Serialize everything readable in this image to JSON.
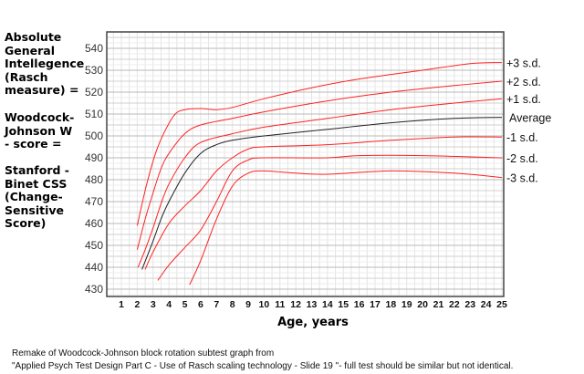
{
  "left_labels": [
    "Absolute General Intellegence (Rasch measure) =",
    "Woodcock-Johnson W - score =",
    "Stanford - Binet CSS (Change-Sensitive Score)"
  ],
  "caption": [
    "Remake of Woodcock-Johnson block rotation subtest graph from",
    "\"Applied Psych Test Design Part C - Use of Rasch scaling technology - Slide 19 \"- full test should be similar but not identical."
  ],
  "chart_data": {
    "type": "line",
    "title": "",
    "xlabel": "Age, years",
    "ylabel": "",
    "xlim": [
      0,
      25
    ],
    "ylim": [
      427,
      547
    ],
    "x_ticks": [
      1,
      2,
      3,
      4,
      5,
      6,
      7,
      8,
      9,
      10,
      11,
      12,
      13,
      14,
      15,
      16,
      17,
      18,
      19,
      20,
      21,
      22,
      23,
      24,
      25
    ],
    "y_ticks": [
      430,
      440,
      450,
      460,
      470,
      480,
      490,
      500,
      510,
      520,
      530,
      540
    ],
    "grid": true,
    "legend": "right, labels at line ends",
    "series": [
      {
        "name": "+3 s.d.",
        "color": "#ff2020",
        "x": [
          2,
          2.6,
          3.2,
          3.8,
          4.4,
          5,
          6,
          7,
          8,
          10,
          13,
          16,
          20,
          23,
          25
        ],
        "y": [
          459,
          478,
          493,
          503,
          510,
          512,
          512.5,
          512,
          513,
          517,
          522,
          526,
          530,
          533,
          533.5
        ]
      },
      {
        "name": "+2 s.d.",
        "color": "#ff2020",
        "x": [
          2,
          2.5,
          3,
          3.5,
          4,
          5,
          6,
          8,
          10,
          14,
          18,
          22,
          25
        ],
        "y": [
          448,
          462,
          474,
          485,
          492,
          501,
          505,
          508,
          511,
          516,
          520,
          523,
          525
        ]
      },
      {
        "name": "+1 s.d.",
        "color": "#ff2020",
        "x": [
          2.05,
          2.5,
          3,
          3.5,
          4,
          5,
          6,
          8,
          10,
          14,
          18,
          22,
          25
        ],
        "y": [
          440,
          448,
          458,
          469,
          478,
          490,
          497,
          501,
          504,
          508,
          512,
          515,
          517
        ]
      },
      {
        "name": "Average",
        "color": "#222222",
        "x": [
          2.3,
          3,
          3.5,
          4,
          5,
          6,
          7,
          8,
          10,
          14,
          18,
          22,
          25
        ],
        "y": [
          439,
          452,
          462,
          470,
          483,
          492,
          496,
          498,
          500,
          503,
          506,
          508,
          508.5
        ]
      },
      {
        "name": "-1 s.d.",
        "color": "#ff2020",
        "x": [
          2.5,
          3,
          4,
          5,
          6,
          7,
          8,
          9,
          10,
          14,
          18,
          22,
          25
        ],
        "y": [
          439,
          447,
          460,
          468,
          475,
          484,
          490,
          494,
          495,
          496,
          498,
          499.5,
          499.5
        ]
      },
      {
        "name": "-2 s.d.",
        "color": "#ff2020",
        "x": [
          3.3,
          4,
          5,
          6,
          7,
          8,
          9,
          10,
          14,
          16,
          20,
          25
        ],
        "y": [
          434,
          441,
          449,
          457,
          470,
          484,
          489,
          490,
          490,
          491,
          491,
          490
        ]
      },
      {
        "name": "-3 s.d.",
        "color": "#ff2020",
        "x": [
          5.3,
          6,
          7,
          8,
          9,
          10,
          12,
          14,
          18,
          22,
          25
        ],
        "y": [
          432,
          443,
          462,
          477,
          483,
          484,
          483,
          482.5,
          484,
          483,
          481
        ]
      }
    ]
  }
}
